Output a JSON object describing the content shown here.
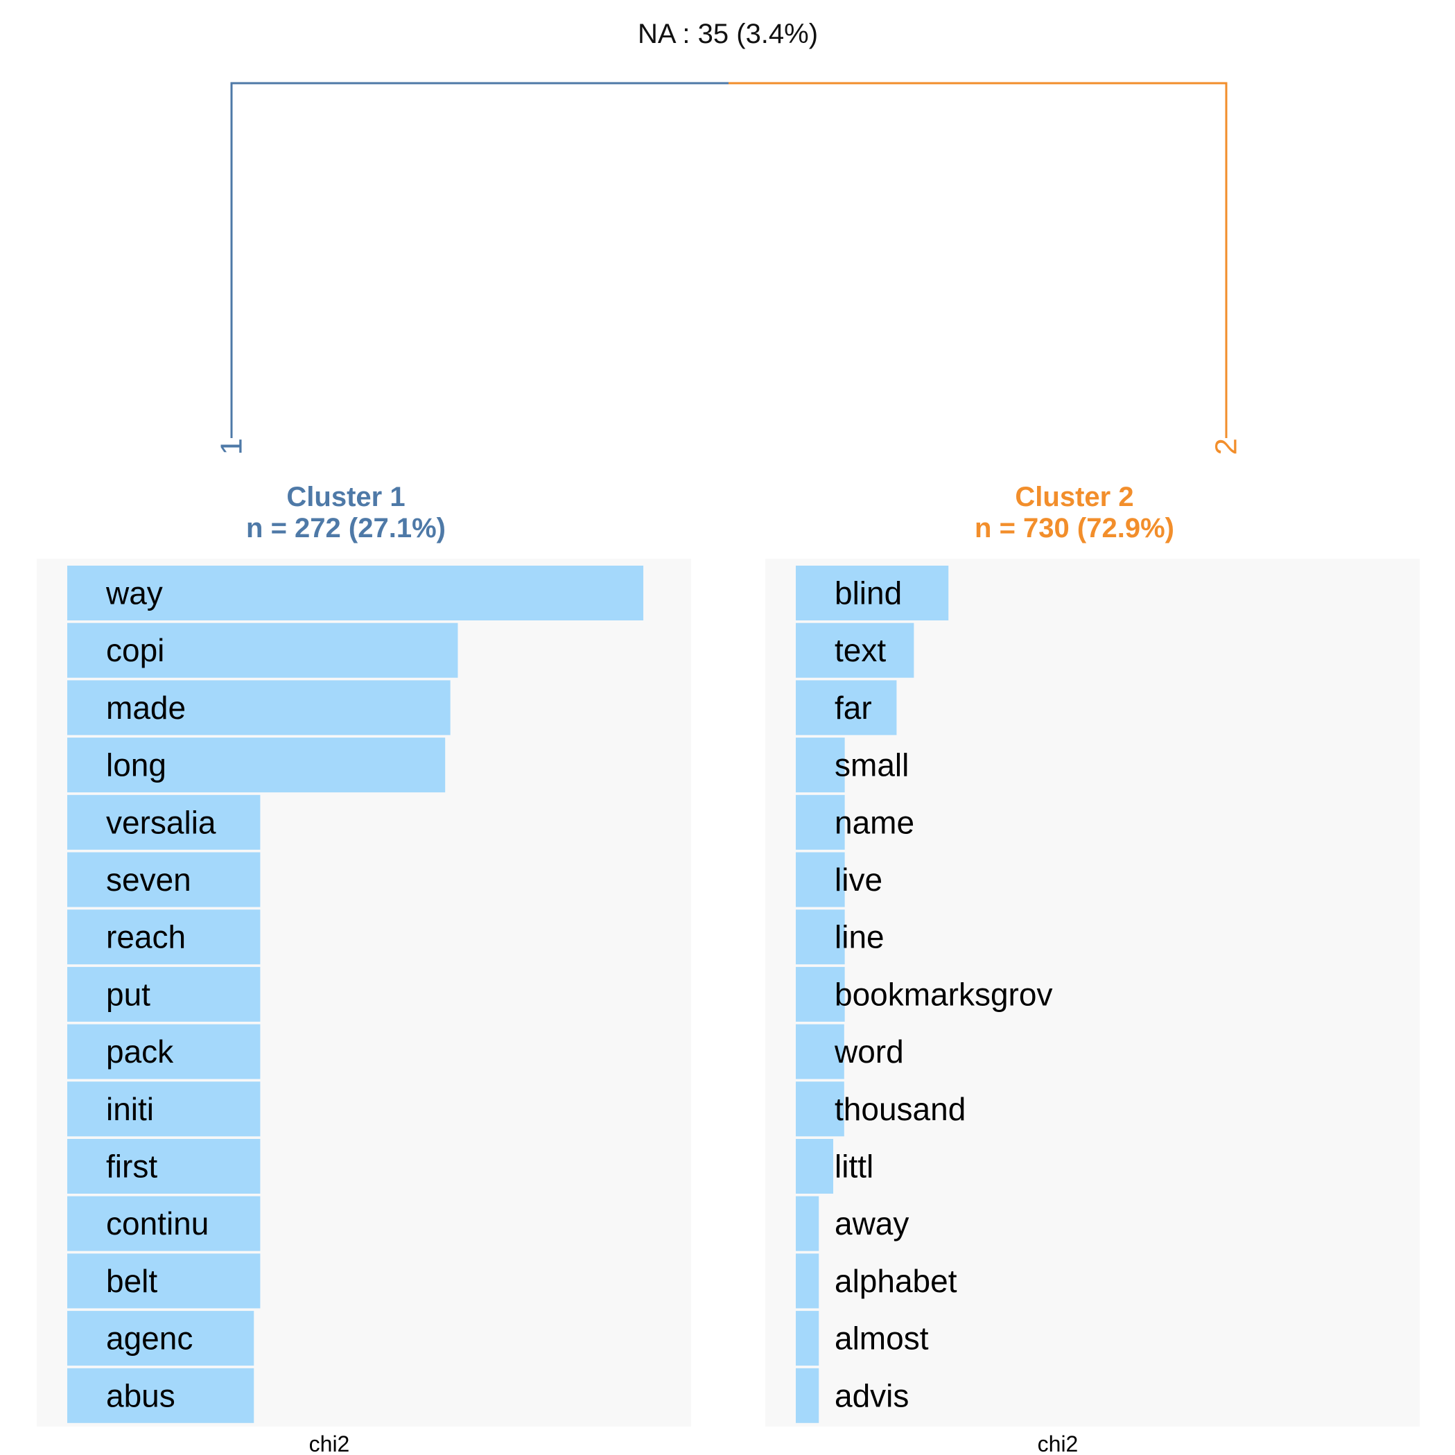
{
  "na_label": "NA : 35 (3.4%)",
  "colors": {
    "cluster1": "#4E79A7",
    "cluster2": "#F28E2B",
    "bar": "#A4D8FB",
    "panel": "#F8F8F8"
  },
  "chart_data": [
    {
      "type": "bar",
      "orientation": "horizontal",
      "title": "Cluster 1",
      "subtitle": "n = 272 (27.1%)",
      "leaf": "1",
      "xlabel": "chi2",
      "xlim": [
        0,
        103
      ],
      "categories": [
        "way",
        "copi",
        "made",
        "long",
        "versalia",
        "seven",
        "reach",
        "put",
        "pack",
        "initi",
        "first",
        "continu",
        "belt",
        "agenc",
        "abus"
      ],
      "values": [
        100,
        67.8,
        66.5,
        65.6,
        33.5,
        33.5,
        33.5,
        33.5,
        33.5,
        33.5,
        33.5,
        33.5,
        33.5,
        32.4,
        32.4
      ]
    },
    {
      "type": "bar",
      "orientation": "horizontal",
      "title": "Cluster 2",
      "subtitle": "n = 730 (72.9%)",
      "leaf": "2",
      "xlabel": "chi2",
      "xlim": [
        0,
        103
      ],
      "categories": [
        "blind",
        "text",
        "far",
        "small",
        "name",
        "live",
        "line",
        "bookmarksgrov",
        "word",
        "thousand",
        "littl",
        "away",
        "alphabet",
        "almost",
        "advis"
      ],
      "values": [
        26.5,
        20.5,
        17.5,
        8.5,
        8.5,
        8.5,
        8.5,
        8.5,
        8.4,
        8.4,
        6.5,
        4.0,
        4.0,
        4.0,
        4.0
      ]
    }
  ]
}
